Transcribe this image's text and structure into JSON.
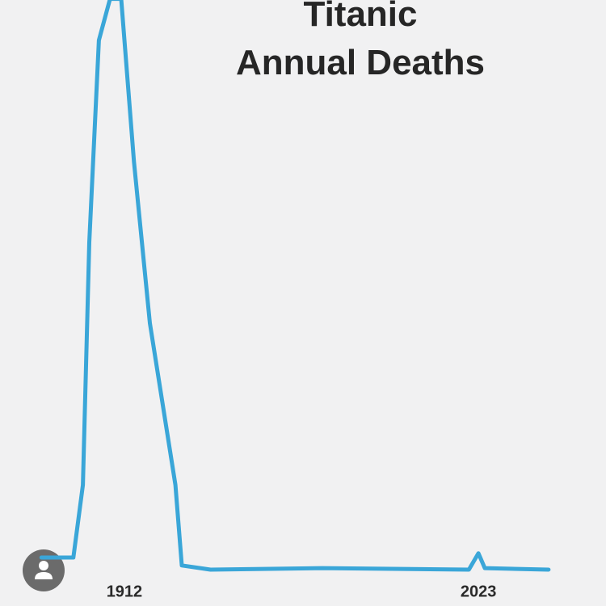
{
  "chart_data": {
    "type": "line",
    "title": [
      "Titanic",
      "Annual Deaths"
    ],
    "x": [
      1886,
      1896,
      1899,
      1901,
      1904,
      1907.5,
      1911,
      1915,
      1920,
      1928,
      1930,
      1939,
      1974,
      2020,
      2023,
      2025,
      2045
    ],
    "values": [
      32,
      32,
      223,
      862,
      1394,
      1503,
      1503,
      1074,
      649,
      223,
      11,
      0,
      4,
      0,
      43,
      4,
      0
    ],
    "color": "#3aa6d8",
    "xlim": [
      1873,
      2063
    ],
    "xticks": [
      1912,
      2023
    ],
    "ylim": [
      0,
      1500
    ],
    "grid": false
  }
}
